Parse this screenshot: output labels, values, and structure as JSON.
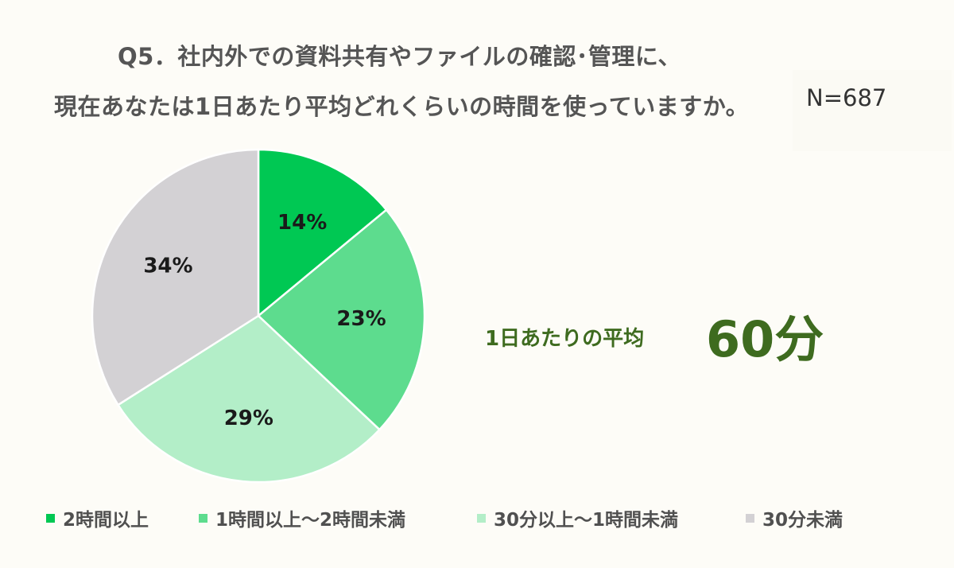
{
  "title": {
    "line1": "Q5．社内外での資料共有やファイルの確認･管理に、",
    "line2": "現在あなたは1日あたり平均どれくらいの時間を使っていますか。"
  },
  "sample_size": "N=687",
  "average": {
    "label": "1日あたりの平均",
    "value": "60分"
  },
  "chart_data": {
    "type": "pie",
    "title": "Q5．社内外での資料共有やファイルの確認･管理に、現在あなたは1日あたり平均どれくらいの時間を使っていますか。",
    "categories": [
      "2時間以上",
      "1時間以上～2時間未満",
      "30分以上～1時間未満",
      "30分未満"
    ],
    "values": [
      14,
      23,
      29,
      34
    ],
    "labels": [
      "14%",
      "23%",
      "29%",
      "34%"
    ],
    "colors": [
      "#00c853",
      "#5ddc8e",
      "#b3eec8",
      "#d3d1d4"
    ],
    "legend_position": "bottom"
  }
}
